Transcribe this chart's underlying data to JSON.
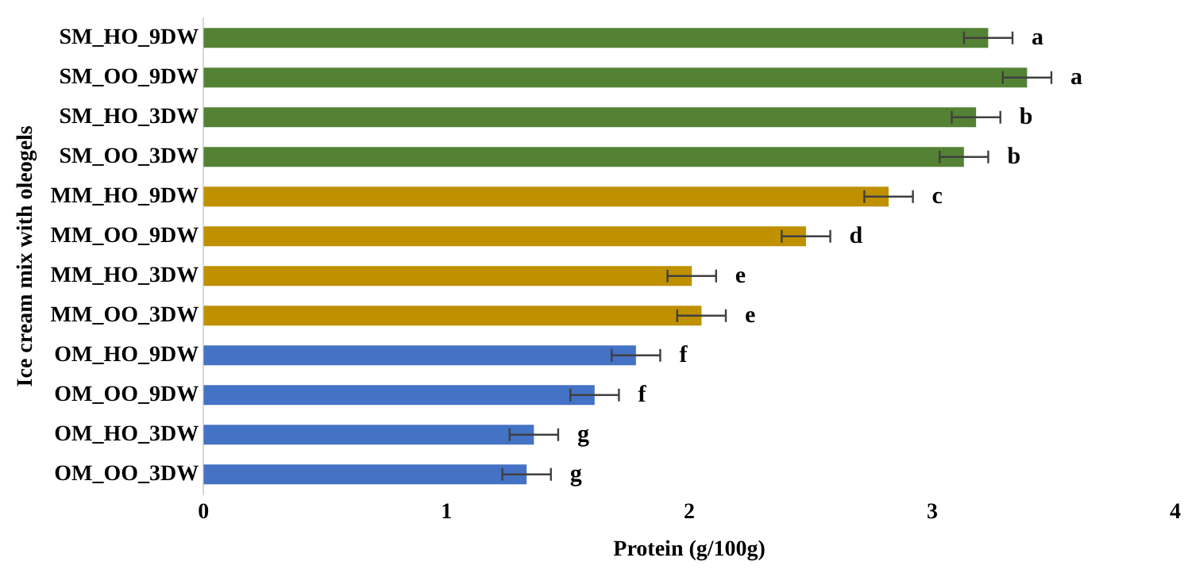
{
  "chart_data": {
    "type": "bar",
    "orientation": "horizontal",
    "xlabel": "Protein (g/100g)",
    "ylabel": "Ice cream mix with oleogels",
    "categories": [
      "SM_HO_9DW",
      "SM_OO_9DW",
      "SM_HO_3DW",
      "SM_OO_3DW",
      "MM_HO_9DW",
      "MM_OO_9DW",
      "MM_HO_3DW",
      "MM_OO_3DW",
      "OM_HO_9DW",
      "OM_OO_9DW",
      "OM_HO_3DW",
      "OM_OO_3DW"
    ],
    "values": [
      3.23,
      3.39,
      3.18,
      3.13,
      2.82,
      2.48,
      2.01,
      2.05,
      1.78,
      1.61,
      1.36,
      1.33
    ],
    "errors": [
      0.1,
      0.1,
      0.1,
      0.1,
      0.1,
      0.1,
      0.1,
      0.1,
      0.1,
      0.1,
      0.1,
      0.1
    ],
    "value_labels": [
      "a",
      "a",
      "b",
      "b",
      "c",
      "d",
      "e",
      "e",
      "f",
      "f",
      "g",
      "g"
    ],
    "colors": [
      "#548235",
      "#548235",
      "#548235",
      "#548235",
      "#bf9000",
      "#bf9000",
      "#bf9000",
      "#bf9000",
      "#4472c4",
      "#4472c4",
      "#4472c4",
      "#4472c4"
    ],
    "xlim": [
      0,
      4
    ],
    "xticks": [
      0,
      1,
      2,
      3,
      4
    ],
    "grid": false,
    "legend": false
  }
}
